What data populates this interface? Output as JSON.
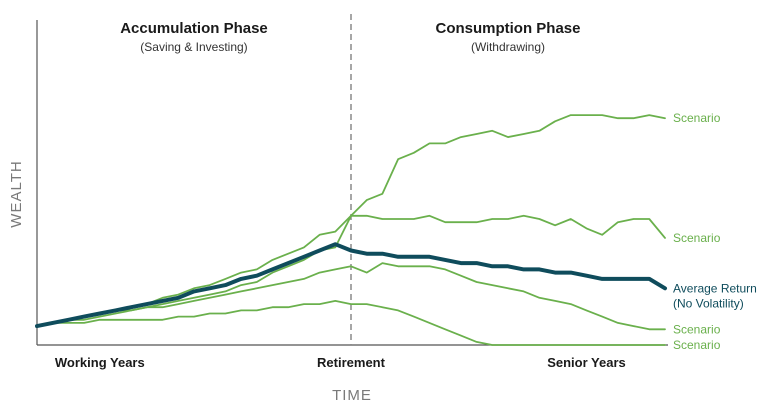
{
  "chart_data": {
    "type": "line",
    "xlabel": "TIME",
    "ylabel": "WEALTH",
    "grid": false,
    "phases": [
      {
        "title": "Accumulation Phase",
        "subtitle": "(Saving & Investing)"
      },
      {
        "title": "Consumption Phase",
        "subtitle": "(Withdrawing)"
      }
    ],
    "x_categories": [
      {
        "label": "Working Years",
        "x": 4
      },
      {
        "label": "Retirement",
        "x": 20
      },
      {
        "label": "Senior Years",
        "x": 35
      }
    ],
    "divider_x": 20,
    "xlim": [
      0,
      40
    ],
    "ylim": [
      0,
      100
    ],
    "x": [
      0,
      1,
      2,
      3,
      4,
      5,
      6,
      7,
      8,
      9,
      10,
      11,
      12,
      13,
      14,
      15,
      16,
      17,
      18,
      19,
      20,
      21,
      22,
      23,
      24,
      25,
      26,
      27,
      28,
      29,
      30,
      31,
      32,
      33,
      34,
      35,
      36,
      37,
      38,
      39,
      40
    ],
    "colors": {
      "scenario": "#6ab04c",
      "average": "#0f4c5c",
      "divider": "#8a8a8a",
      "axis": "#555555"
    },
    "series": [
      {
        "name": "Scenario",
        "kind": "scenario",
        "values": [
          6,
          7,
          8,
          9,
          10,
          11,
          12,
          13,
          15,
          16,
          18,
          19,
          21,
          23,
          24,
          27,
          29,
          31,
          35,
          36,
          41,
          46,
          48,
          59,
          61,
          64,
          64,
          66,
          67,
          68,
          66,
          67,
          68,
          71,
          73,
          73,
          73,
          72,
          72,
          73,
          72
        ]
      },
      {
        "name": "Scenario",
        "kind": "scenario",
        "values": [
          6,
          7,
          8,
          9,
          10,
          11,
          11,
          12,
          13,
          14,
          15,
          16,
          17,
          19,
          20,
          23,
          25,
          27,
          30,
          31,
          41,
          41,
          40,
          40,
          40,
          41,
          39,
          39,
          39,
          40,
          40,
          41,
          40,
          38,
          40,
          37,
          35,
          39,
          40,
          40,
          34
        ]
      },
      {
        "name": "Average Return",
        "name_line2": "(No Volatility)",
        "kind": "average",
        "values": [
          6,
          7,
          8,
          9,
          10,
          11,
          12,
          13,
          14,
          15,
          17,
          18,
          19,
          21,
          22,
          24,
          26,
          28,
          30,
          32,
          30,
          29,
          29,
          28,
          28,
          28,
          27,
          26,
          26,
          25,
          25,
          24,
          24,
          23,
          23,
          22,
          21,
          21,
          21,
          21,
          18
        ]
      },
      {
        "name": "Scenario",
        "kind": "scenario",
        "values": [
          6,
          7,
          8,
          8,
          9,
          10,
          11,
          12,
          12,
          13,
          14,
          15,
          16,
          17,
          18,
          19,
          20,
          21,
          23,
          24,
          25,
          23,
          26,
          25,
          25,
          25,
          24,
          22,
          20,
          19,
          18,
          17,
          15,
          14,
          13,
          11,
          9,
          7,
          6,
          5,
          5
        ]
      },
      {
        "name": "Scenario",
        "kind": "scenario",
        "values": [
          6,
          7,
          7,
          7,
          8,
          8,
          8,
          8,
          8,
          9,
          9,
          10,
          10,
          11,
          11,
          12,
          12,
          13,
          13,
          14,
          13,
          13,
          12,
          11,
          9,
          7,
          5,
          3,
          1,
          0,
          0,
          0,
          0,
          0,
          0,
          0,
          0,
          0,
          0,
          0,
          0
        ]
      }
    ]
  }
}
